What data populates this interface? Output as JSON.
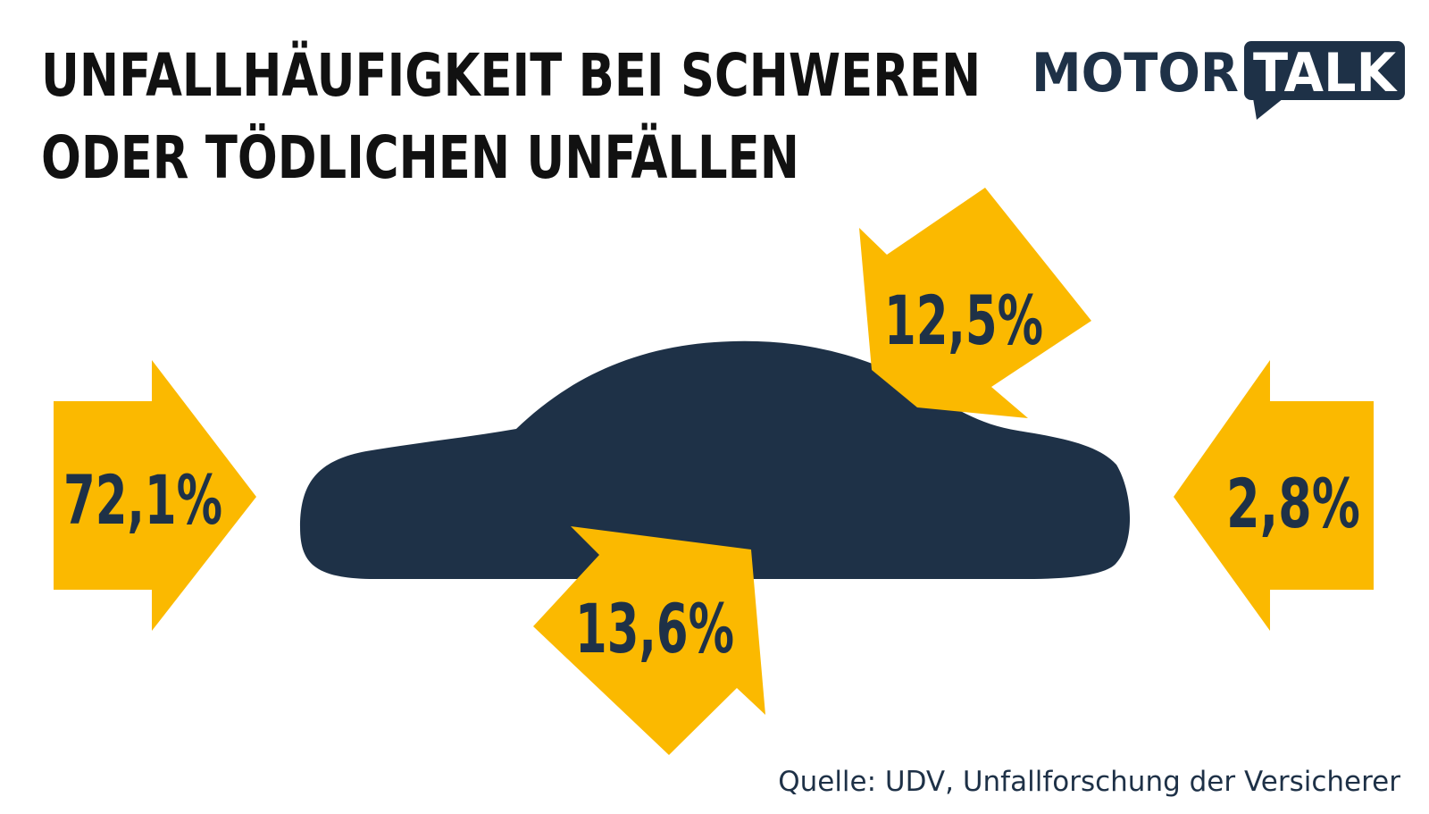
{
  "title": {
    "line1": "UNFALLHÄUFIGKEIT BEI SCHWEREN",
    "line2": "ODER TÖDLICHEN UNFÄLLEN"
  },
  "logo": {
    "part1": "MOTOR",
    "part2": "TALK"
  },
  "source": "Quelle: UDV, Unfallforschung der Versicherer",
  "colors": {
    "arrow": "#fbb900",
    "car": "#1e3147",
    "text": "#1e3147",
    "title": "#111111"
  },
  "chart_data": {
    "type": "other",
    "title": "UNFALLHÄUFIGKEIT BEI SCHWEREN ODER TÖDLICHEN UNFÄLLEN",
    "values": [
      {
        "direction": "front",
        "label": "72,1%",
        "value": 72.1
      },
      {
        "direction": "side-bottom",
        "label": "13,6%",
        "value": 13.6
      },
      {
        "direction": "side-top",
        "label": "12,5%",
        "value": 12.5
      },
      {
        "direction": "rear",
        "label": "2,8%",
        "value": 2.8
      }
    ],
    "unit": "%",
    "source": "Quelle: UDV, Unfallforschung der Versicherer"
  }
}
